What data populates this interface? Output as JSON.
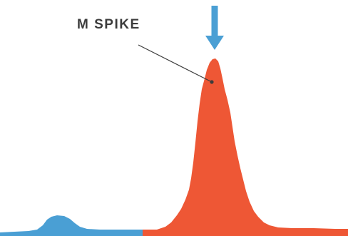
{
  "figure": {
    "callout_label": "M SPIKE",
    "colors": {
      "background": "#ffffff",
      "baseline_region": "#4a9fd4",
      "spike_region": "#ee5735",
      "callout_text": "#3c3c3c",
      "leader_line": "#3c3c3c",
      "arrow": "#4a9fd4"
    },
    "icons": {
      "arrow": "arrow-down-icon"
    }
  }
}
